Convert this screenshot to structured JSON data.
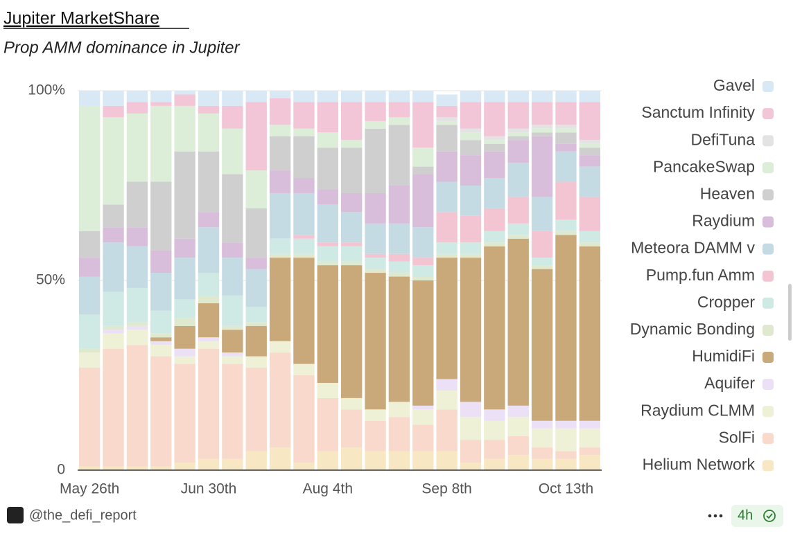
{
  "chart_data": {
    "type": "stacked-bar",
    "title": "Jupiter MarketShare",
    "subtitle": "Prop AMM dominance in Jupiter",
    "categories": [
      "May 26th",
      null,
      null,
      null,
      null,
      "Jun 30th",
      null,
      null,
      null,
      null,
      "Aug 4th",
      null,
      null,
      null,
      null,
      "Sep 8th",
      null,
      null,
      null,
      null,
      "Oct 13th",
      null
    ],
    "ylim": [
      0,
      100
    ],
    "yticks": [
      0,
      {
        "value": 50,
        "label": "50%"
      },
      {
        "value": 100,
        "label": "100%"
      }
    ],
    "grid": true,
    "legend": "right",
    "series": [
      {
        "name": "Helium Network",
        "color": "#f7e7c3",
        "values": [
          1,
          1,
          1,
          1,
          2,
          3,
          3,
          5,
          6,
          2,
          5,
          6,
          5,
          5,
          5,
          5,
          2,
          3,
          4,
          3,
          3,
          4
        ]
      },
      {
        "name": "SolFi",
        "color": "#f8d9cc",
        "values": [
          26,
          31,
          32,
          29,
          26,
          29,
          25,
          22,
          25,
          23,
          14,
          10,
          8,
          9,
          7,
          11,
          6,
          5,
          5,
          3,
          2,
          2
        ]
      },
      {
        "name": "Raydium CLMM",
        "color": "#eef1d5",
        "values": [
          4,
          4,
          4,
          3,
          2,
          2,
          2,
          3,
          3,
          3,
          4,
          3,
          3,
          4,
          4,
          5,
          6,
          5,
          5,
          5,
          6,
          5
        ]
      },
      {
        "name": "Aquifer",
        "color": "#ebe0f5",
        "values": [
          0,
          1,
          1,
          1,
          2,
          1,
          1,
          0,
          0,
          0,
          0,
          0,
          0,
          0,
          1,
          3,
          4,
          3,
          3,
          2,
          2,
          2
        ]
      },
      {
        "name": "HumidiFi",
        "color": "#c9a87a",
        "values": [
          0,
          0,
          0,
          1,
          6,
          9,
          6,
          8,
          22,
          28,
          31,
          35,
          36,
          33,
          33,
          32,
          38,
          43,
          44,
          40,
          49,
          46
        ]
      },
      {
        "name": "Dynamic Bonding",
        "color": "#dfe9cf",
        "values": [
          1,
          1,
          1,
          1,
          2,
          2,
          1,
          1,
          1,
          1,
          1,
          1,
          1,
          1,
          1,
          1,
          1,
          1,
          1,
          1,
          1,
          1
        ]
      },
      {
        "name": "Cropper",
        "color": "#cfe9e4",
        "values": [
          9,
          9,
          9,
          6,
          5,
          6,
          8,
          4,
          4,
          4,
          4,
          4,
          3,
          3,
          3,
          3,
          3,
          3,
          3,
          2,
          3,
          3
        ]
      },
      {
        "name": "Pump.fun Amm",
        "color": "#f3c5d3",
        "values": [
          0,
          0,
          0,
          0,
          0,
          0,
          0,
          0,
          0,
          1,
          1,
          1,
          1,
          2,
          2,
          8,
          7,
          6,
          7,
          7,
          10,
          9
        ]
      },
      {
        "name": "Meteora DAMM v",
        "color": "#c5dbe3",
        "values": [
          10,
          13,
          11,
          10,
          11,
          12,
          10,
          10,
          12,
          11,
          10,
          8,
          8,
          8,
          8,
          8,
          8,
          8,
          9,
          9,
          8,
          8
        ]
      },
      {
        "name": "Raydium",
        "color": "#d8bedb",
        "values": [
          5,
          4,
          5,
          6,
          5,
          4,
          4,
          3,
          6,
          4,
          4,
          5,
          8,
          10,
          14,
          8,
          8,
          7,
          6,
          16,
          2,
          3
        ]
      },
      {
        "name": "Heaven",
        "color": "#cfcfcf",
        "values": [
          7,
          6,
          12,
          18,
          23,
          16,
          18,
          13,
          9,
          11,
          11,
          12,
          17,
          16,
          2,
          7,
          4,
          2,
          1,
          1,
          3,
          2
        ]
      },
      {
        "name": "PancakeSwap",
        "color": "#dcedd8",
        "values": [
          33,
          23,
          18,
          20,
          12,
          10,
          12,
          10,
          3,
          2,
          4,
          2,
          2,
          2,
          5,
          1,
          2,
          1,
          1,
          1,
          1,
          1
        ]
      },
      {
        "name": "DefiTuna",
        "color": "#e3e3e3",
        "values": [
          0,
          0,
          0,
          0,
          0,
          0,
          0,
          0,
          0,
          0,
          0,
          0,
          0,
          0,
          0,
          1,
          1,
          1,
          1,
          1,
          1,
          1
        ]
      },
      {
        "name": "Sanctum Infinity",
        "color": "#f2c6d6",
        "values": [
          0,
          3,
          3,
          1,
          3,
          2,
          6,
          18,
          7,
          7,
          8,
          10,
          5,
          4,
          12,
          3,
          7,
          9,
          7,
          6,
          6,
          10
        ]
      },
      {
        "name": "Gavel",
        "color": "#d9e8f5",
        "values": [
          4,
          4,
          3,
          3,
          1,
          4,
          4,
          3,
          2,
          3,
          3,
          3,
          3,
          3,
          3,
          3,
          3,
          3,
          3,
          3,
          3,
          3
        ]
      }
    ]
  },
  "footer": {
    "handle": "@the_defi_report",
    "time": "4h"
  }
}
